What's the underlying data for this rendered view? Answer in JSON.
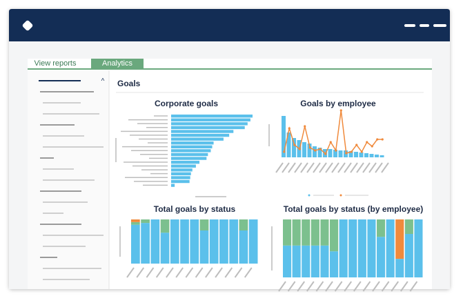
{
  "tabs": [
    "View reports",
    "Analytics"
  ],
  "section_title": "Goals",
  "charts": [
    {
      "type": "hbar",
      "title": "Corporate goals",
      "color": "#5bc0eb",
      "values": [
        115,
        112,
        108,
        104,
        88,
        82,
        74,
        60,
        58,
        56,
        52,
        50,
        40,
        35,
        30,
        28,
        27,
        26,
        5
      ]
    },
    {
      "type": "barline",
      "title": "Goals by employee",
      "color": "#5bc0eb",
      "line_color": "#f08a3c",
      "values": [
        60,
        36,
        28,
        25,
        22,
        20,
        16,
        14,
        12,
        12,
        11,
        10,
        10,
        9,
        8,
        7,
        6,
        5,
        4,
        3
      ],
      "line": [
        8,
        42,
        18,
        12,
        45,
        14,
        10,
        12,
        5,
        22,
        10,
        68,
        6,
        8,
        18,
        8,
        22,
        16,
        26,
        26
      ]
    },
    {
      "type": "stacked",
      "title": "Total goals by status",
      "series": [
        {
          "color": "#5bc0eb",
          "values": [
            88,
            92,
            100,
            70,
            100,
            100,
            100,
            75,
            100,
            100,
            100,
            75,
            100
          ]
        },
        {
          "color": "#7cc08e",
          "values": [
            6,
            8,
            0,
            30,
            0,
            0,
            0,
            25,
            0,
            0,
            0,
            25,
            0
          ]
        },
        {
          "color": "#f08a3c",
          "values": [
            6,
            0,
            0,
            0,
            0,
            0,
            0,
            0,
            0,
            0,
            0,
            0,
            0
          ]
        }
      ]
    },
    {
      "type": "stacked",
      "title": "Total goals by status (by employee)",
      "series": [
        {
          "color": "#5bc0eb",
          "values": [
            55,
            55,
            55,
            55,
            55,
            45,
            100,
            100,
            100,
            100,
            70,
            100,
            32,
            75,
            100
          ]
        },
        {
          "color": "#7cc08e",
          "values": [
            45,
            45,
            45,
            45,
            45,
            55,
            0,
            0,
            0,
            0,
            30,
            0,
            0,
            25,
            0
          ]
        },
        {
          "color": "#f08a3c",
          "values": [
            0,
            0,
            0,
            0,
            0,
            0,
            0,
            0,
            0,
            0,
            0,
            0,
            68,
            0,
            0
          ]
        }
      ]
    }
  ]
}
